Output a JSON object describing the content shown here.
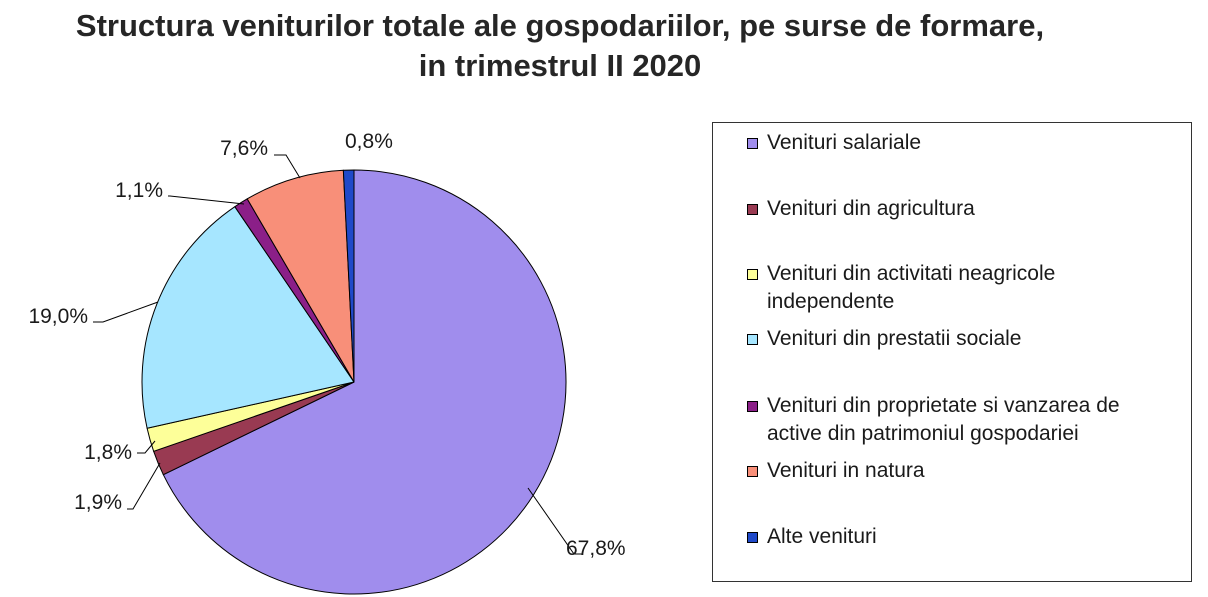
{
  "chart_data": {
    "type": "pie",
    "title_lines": [
      "Structura veniturilor totale ale gospodariilor, pe surse de formare,",
      "in trimestrul II 2020"
    ],
    "slices": [
      {
        "name": "Venituri salariale",
        "value": 67.8,
        "label": "67,8%",
        "color": "#a08ded"
      },
      {
        "name": "Venituri din agricultura",
        "value": 1.9,
        "label": "1,9%",
        "color": "#993a52"
      },
      {
        "name": "Venituri din activitati neagricole independente",
        "value": 1.8,
        "label": "1,8%",
        "color": "#fdff99"
      },
      {
        "name": "Venituri din prestatii sociale",
        "value": 19.0,
        "label": "19,0%",
        "color": "#a6e6ff"
      },
      {
        "name": "Venituri din proprietate si vanzarea de active din patrimoniul gospodariei",
        "value": 1.1,
        "label": "1,1%",
        "color": "#8b1f88"
      },
      {
        "name": "Venituri in natura",
        "value": 7.6,
        "label": "7,6%",
        "color": "#f88f79"
      },
      {
        "name": "Alte venituri",
        "value": 0.8,
        "label": "0,8%",
        "color": "#1f49c9"
      }
    ],
    "start_angle_deg": 0,
    "direction": "clockwise",
    "legend_position": "right"
  }
}
